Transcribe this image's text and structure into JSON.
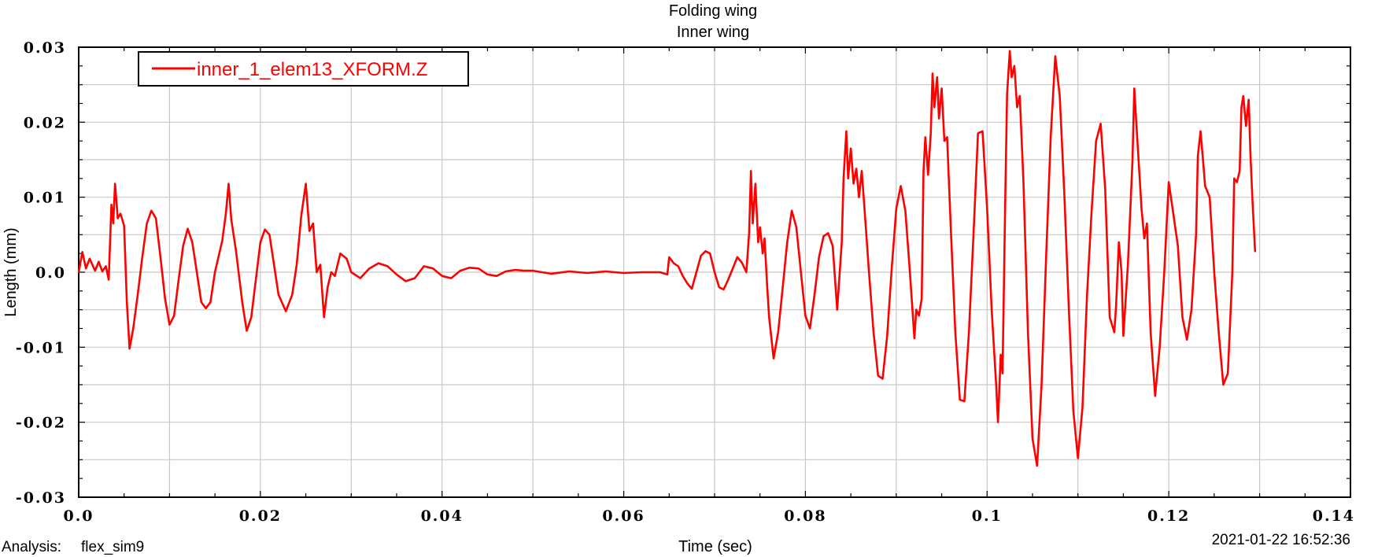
{
  "chart_data": {
    "type": "line",
    "title": "Folding wing",
    "subtitle": "Inner wing",
    "xlabel": "Time (sec)",
    "ylabel": "Length (mm)",
    "xlim": [
      0.0,
      0.14
    ],
    "ylim": [
      -0.03,
      0.03
    ],
    "x_ticks": [
      0.0,
      0.02,
      0.04,
      0.06,
      0.08,
      0.1,
      0.12,
      0.14
    ],
    "x_tick_labels": [
      "0.0",
      "0.02",
      "0.04",
      "0.06",
      "0.08",
      "0.1",
      "0.12",
      "0.14"
    ],
    "y_ticks": [
      0.03,
      0.02,
      0.01,
      0.0,
      -0.01,
      -0.02,
      -0.03
    ],
    "y_tick_labels": [
      "0.03",
      "0.02",
      "0.01",
      "0.0",
      "-0.01",
      "-0.02",
      "-0.03"
    ],
    "grid": true,
    "legend_position": "top-left",
    "series": [
      {
        "name": "inner_1_elem13_XFORM.Z",
        "color": "#ff0000",
        "points": [
          [
            0.0,
            0.0
          ],
          [
            0.0004,
            0.0027
          ],
          [
            0.0008,
            0.0005
          ],
          [
            0.0012,
            0.0018
          ],
          [
            0.0018,
            0.0002
          ],
          [
            0.0022,
            0.0014
          ],
          [
            0.0026,
            0.0001
          ],
          [
            0.003,
            0.0008
          ],
          [
            0.0033,
            -0.001
          ],
          [
            0.0036,
            0.009
          ],
          [
            0.0038,
            0.0065
          ],
          [
            0.004,
            0.0118
          ],
          [
            0.0043,
            0.0072
          ],
          [
            0.0046,
            0.0078
          ],
          [
            0.005,
            0.0062
          ],
          [
            0.0053,
            -0.004
          ],
          [
            0.0056,
            -0.0102
          ],
          [
            0.006,
            -0.0075
          ],
          [
            0.0065,
            -0.003
          ],
          [
            0.007,
            0.002
          ],
          [
            0.0075,
            0.0065
          ],
          [
            0.008,
            0.0082
          ],
          [
            0.0085,
            0.0072
          ],
          [
            0.009,
            0.002
          ],
          [
            0.0095,
            -0.0035
          ],
          [
            0.01,
            -0.007
          ],
          [
            0.0105,
            -0.0058
          ],
          [
            0.011,
            -0.001
          ],
          [
            0.0115,
            0.0035
          ],
          [
            0.012,
            0.0058
          ],
          [
            0.0125,
            0.004
          ],
          [
            0.013,
            0.0
          ],
          [
            0.0135,
            -0.004
          ],
          [
            0.014,
            -0.0048
          ],
          [
            0.0145,
            -0.004
          ],
          [
            0.015,
            0.0
          ],
          [
            0.0158,
            0.0042
          ],
          [
            0.0162,
            0.0078
          ],
          [
            0.0165,
            0.0118
          ],
          [
            0.0168,
            0.007
          ],
          [
            0.0173,
            0.003
          ],
          [
            0.018,
            -0.004
          ],
          [
            0.0185,
            -0.0078
          ],
          [
            0.019,
            -0.006
          ],
          [
            0.0195,
            -0.001
          ],
          [
            0.02,
            0.004
          ],
          [
            0.0205,
            0.0057
          ],
          [
            0.021,
            0.005
          ],
          [
            0.0215,
            0.001
          ],
          [
            0.022,
            -0.003
          ],
          [
            0.0228,
            -0.0052
          ],
          [
            0.0235,
            -0.003
          ],
          [
            0.024,
            0.001
          ],
          [
            0.0245,
            0.0075
          ],
          [
            0.025,
            0.0118
          ],
          [
            0.0254,
            0.0055
          ],
          [
            0.0258,
            0.0065
          ],
          [
            0.0262,
            0.0
          ],
          [
            0.0266,
            0.001
          ],
          [
            0.027,
            -0.006
          ],
          [
            0.0274,
            -0.002
          ],
          [
            0.0278,
            0.0
          ],
          [
            0.0282,
            -0.0005
          ],
          [
            0.0288,
            0.0025
          ],
          [
            0.0295,
            0.0018
          ],
          [
            0.03,
            0.0
          ],
          [
            0.031,
            -0.0008
          ],
          [
            0.032,
            0.0005
          ],
          [
            0.033,
            0.0012
          ],
          [
            0.034,
            0.0008
          ],
          [
            0.035,
            -0.0003
          ],
          [
            0.036,
            -0.0012
          ],
          [
            0.037,
            -0.0008
          ],
          [
            0.038,
            0.0008
          ],
          [
            0.039,
            0.0005
          ],
          [
            0.04,
            -0.0005
          ],
          [
            0.041,
            -0.0008
          ],
          [
            0.042,
            0.0002
          ],
          [
            0.043,
            0.0006
          ],
          [
            0.044,
            0.0005
          ],
          [
            0.045,
            -0.0003
          ],
          [
            0.046,
            -0.0005
          ],
          [
            0.047,
            0.0001
          ],
          [
            0.048,
            0.0003
          ],
          [
            0.049,
            0.0002
          ],
          [
            0.05,
            0.0002
          ],
          [
            0.052,
            -0.0002
          ],
          [
            0.054,
            0.0001
          ],
          [
            0.056,
            -0.0001
          ],
          [
            0.058,
            0.0001
          ],
          [
            0.06,
            -0.0001
          ],
          [
            0.062,
            0.0
          ],
          [
            0.064,
            0.0
          ],
          [
            0.0648,
            -0.0003
          ],
          [
            0.065,
            0.002
          ],
          [
            0.0655,
            0.0012
          ],
          [
            0.066,
            0.0008
          ],
          [
            0.0665,
            -0.0005
          ],
          [
            0.067,
            -0.0015
          ],
          [
            0.0675,
            -0.0022
          ],
          [
            0.068,
            0.0
          ],
          [
            0.0685,
            0.0022
          ],
          [
            0.069,
            0.0028
          ],
          [
            0.0695,
            0.0025
          ],
          [
            0.07,
            0.0
          ],
          [
            0.0705,
            -0.002
          ],
          [
            0.071,
            -0.0023
          ],
          [
            0.0715,
            -0.001
          ],
          [
            0.072,
            0.0005
          ],
          [
            0.0725,
            0.002
          ],
          [
            0.073,
            0.0013
          ],
          [
            0.0735,
            0.0
          ],
          [
            0.0738,
            0.0052
          ],
          [
            0.074,
            0.0135
          ],
          [
            0.0742,
            0.0065
          ],
          [
            0.0745,
            0.0118
          ],
          [
            0.0748,
            0.004
          ],
          [
            0.075,
            0.006
          ],
          [
            0.0753,
            0.0025
          ],
          [
            0.0755,
            0.0045
          ],
          [
            0.0758,
            -0.002
          ],
          [
            0.076,
            -0.006
          ],
          [
            0.0765,
            -0.0115
          ],
          [
            0.077,
            -0.008
          ],
          [
            0.0775,
            -0.002
          ],
          [
            0.078,
            0.004
          ],
          [
            0.0785,
            0.0082
          ],
          [
            0.079,
            0.006
          ],
          [
            0.0795,
            0.0
          ],
          [
            0.08,
            -0.0058
          ],
          [
            0.0805,
            -0.0075
          ],
          [
            0.081,
            -0.003
          ],
          [
            0.0815,
            0.002
          ],
          [
            0.082,
            0.0048
          ],
          [
            0.0825,
            0.0052
          ],
          [
            0.083,
            0.0035
          ],
          [
            0.0835,
            -0.005
          ],
          [
            0.084,
            0.004
          ],
          [
            0.0842,
            0.0125
          ],
          [
            0.0845,
            0.0188
          ],
          [
            0.0847,
            0.0125
          ],
          [
            0.085,
            0.0165
          ],
          [
            0.0853,
            0.0118
          ],
          [
            0.0856,
            0.0138
          ],
          [
            0.0859,
            0.01
          ],
          [
            0.0862,
            0.0135
          ],
          [
            0.0865,
            0.0085
          ],
          [
            0.087,
            0.0
          ],
          [
            0.0875,
            -0.008
          ],
          [
            0.088,
            -0.0138
          ],
          [
            0.0885,
            -0.0142
          ],
          [
            0.089,
            -0.0085
          ],
          [
            0.0895,
            0.0005
          ],
          [
            0.09,
            0.0085
          ],
          [
            0.0905,
            0.0115
          ],
          [
            0.091,
            0.0082
          ],
          [
            0.0915,
            0.0
          ],
          [
            0.092,
            -0.0088
          ],
          [
            0.0922,
            -0.005
          ],
          [
            0.0925,
            -0.0058
          ],
          [
            0.0928,
            -0.0035
          ],
          [
            0.093,
            0.0135
          ],
          [
            0.0932,
            0.018
          ],
          [
            0.0935,
            0.013
          ],
          [
            0.0938,
            0.0185
          ],
          [
            0.094,
            0.0265
          ],
          [
            0.0942,
            0.022
          ],
          [
            0.0945,
            0.026
          ],
          [
            0.0947,
            0.0205
          ],
          [
            0.095,
            0.0245
          ],
          [
            0.0953,
            0.0175
          ],
          [
            0.0956,
            0.018
          ],
          [
            0.096,
            0.006
          ],
          [
            0.0965,
            -0.008
          ],
          [
            0.097,
            -0.017
          ],
          [
            0.0975,
            -0.0172
          ],
          [
            0.098,
            -0.008
          ],
          [
            0.0985,
            0.005
          ],
          [
            0.099,
            0.0185
          ],
          [
            0.0995,
            0.0188
          ],
          [
            0.1,
            0.0085
          ],
          [
            0.1005,
            -0.005
          ],
          [
            0.101,
            -0.015
          ],
          [
            0.1012,
            -0.02
          ],
          [
            0.1015,
            -0.011
          ],
          [
            0.1017,
            -0.0135
          ],
          [
            0.102,
            0.01
          ],
          [
            0.1022,
            0.0238
          ],
          [
            0.1025,
            0.0295
          ],
          [
            0.1027,
            0.026
          ],
          [
            0.103,
            0.0275
          ],
          [
            0.1033,
            0.022
          ],
          [
            0.1036,
            0.0235
          ],
          [
            0.104,
            0.012
          ],
          [
            0.1045,
            -0.008
          ],
          [
            0.105,
            -0.0222
          ],
          [
            0.1055,
            -0.0258
          ],
          [
            0.106,
            -0.015
          ],
          [
            0.1065,
            0.002
          ],
          [
            0.107,
            0.018
          ],
          [
            0.1075,
            0.0288
          ],
          [
            0.108,
            0.0235
          ],
          [
            0.1085,
            0.0105
          ],
          [
            0.109,
            -0.005
          ],
          [
            0.1095,
            -0.0185
          ],
          [
            0.11,
            -0.0248
          ],
          [
            0.1105,
            -0.018
          ],
          [
            0.111,
            -0.003
          ],
          [
            0.1115,
            0.008
          ],
          [
            0.112,
            0.0175
          ],
          [
            0.1125,
            0.0198
          ],
          [
            0.113,
            0.0112
          ],
          [
            0.1135,
            -0.006
          ],
          [
            0.114,
            -0.008
          ],
          [
            0.1142,
            -0.0045
          ],
          [
            0.1145,
            0.004
          ],
          [
            0.1148,
            0.0
          ],
          [
            0.115,
            -0.0085
          ],
          [
            0.1155,
            0.001
          ],
          [
            0.116,
            0.0148
          ],
          [
            0.1162,
            0.0245
          ],
          [
            0.1165,
            0.0185
          ],
          [
            0.1168,
            0.0125
          ],
          [
            0.117,
            0.0085
          ],
          [
            0.1173,
            0.0045
          ],
          [
            0.1176,
            0.0065
          ],
          [
            0.118,
            -0.008
          ],
          [
            0.1185,
            -0.0165
          ],
          [
            0.119,
            -0.01
          ],
          [
            0.1195,
            0.0
          ],
          [
            0.12,
            0.012
          ],
          [
            0.1205,
            0.0078
          ],
          [
            0.121,
            0.0035
          ],
          [
            0.1215,
            -0.006
          ],
          [
            0.122,
            -0.009
          ],
          [
            0.1225,
            -0.005
          ],
          [
            0.123,
            0.005
          ],
          [
            0.1232,
            0.0155
          ],
          [
            0.1235,
            0.0188
          ],
          [
            0.1238,
            0.0145
          ],
          [
            0.124,
            0.0115
          ],
          [
            0.1245,
            0.01
          ],
          [
            0.125,
            0.0
          ],
          [
            0.1255,
            -0.008
          ],
          [
            0.126,
            -0.015
          ],
          [
            0.1265,
            -0.0135
          ],
          [
            0.127,
            0.0
          ],
          [
            0.1272,
            0.0125
          ],
          [
            0.1275,
            0.012
          ],
          [
            0.1278,
            0.0135
          ],
          [
            0.128,
            0.022
          ],
          [
            0.1282,
            0.0235
          ],
          [
            0.1285,
            0.0195
          ],
          [
            0.1288,
            0.023
          ],
          [
            0.129,
            0.0155
          ],
          [
            0.1292,
            0.01
          ],
          [
            0.1295,
            0.0028
          ]
        ]
      }
    ]
  },
  "footer": {
    "analysis_label": "Analysis:",
    "analysis_value": "flex_sim9",
    "timestamp": "2021-01-22 16:52:36"
  }
}
